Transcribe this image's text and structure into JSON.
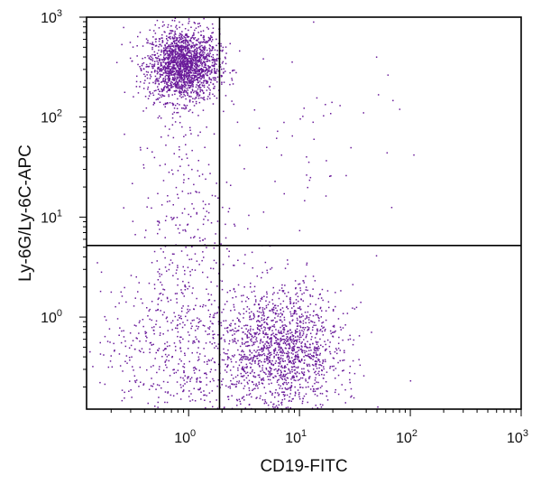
{
  "chart_data": {
    "type": "scatter",
    "subtype": "flow-cytometry-dot-plot",
    "xlabel": "CD19-FITC",
    "ylabel": "Ly-6G/Ly-6C-APC",
    "x_scale": "log",
    "y_scale": "log",
    "xlim": [
      0.12,
      1000
    ],
    "ylim": [
      0.12,
      1000
    ],
    "x_ticks": [
      {
        "value": 1,
        "base": "10",
        "exp": "0"
      },
      {
        "value": 10,
        "base": "10",
        "exp": "1"
      },
      {
        "value": 100,
        "base": "10",
        "exp": "2"
      },
      {
        "value": 1000,
        "base": "10",
        "exp": "3"
      }
    ],
    "y_ticks": [
      {
        "value": 1,
        "base": "10",
        "exp": "0"
      },
      {
        "value": 10,
        "base": "10",
        "exp": "1"
      },
      {
        "value": 100,
        "base": "10",
        "exp": "2"
      },
      {
        "value": 1000,
        "base": "10",
        "exp": "3"
      }
    ],
    "quadrant_gates": {
      "x": 1.9,
      "y": 5.2
    },
    "dot_color": "#6a1b9a",
    "grid": false,
    "populations": [
      {
        "center_x": 0.9,
        "center_y": 330,
        "spread_x": 0.16,
        "spread_y": 0.18,
        "count": 1900
      },
      {
        "center_x": 0.9,
        "center_y": 8,
        "spread_x": 0.22,
        "spread_y": 0.6,
        "count": 260
      },
      {
        "center_x": 0.8,
        "center_y": 0.5,
        "spread_x": 0.35,
        "spread_y": 0.4,
        "count": 520
      },
      {
        "center_x": 7,
        "center_y": 0.45,
        "spread_x": 0.27,
        "spread_y": 0.32,
        "count": 1500
      },
      {
        "center_x": 12,
        "center_y": 50,
        "spread_x": 0.45,
        "spread_y": 0.6,
        "count": 60
      }
    ]
  }
}
